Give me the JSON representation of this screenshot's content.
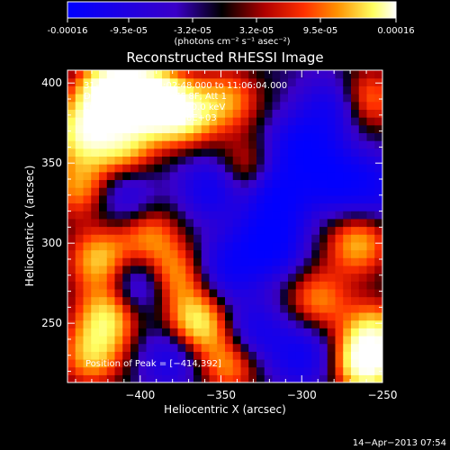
{
  "colorbar": {
    "ticks": [
      "-0.00016",
      "-9.5e-05",
      "-3.2e-05",
      "3.2e-05",
      "9.5e-05",
      "0.00016"
    ],
    "unit_label": "(photons cm⁻² s⁻¹ asec⁻²)",
    "colors": [
      "#0000ff",
      "#3a00c8",
      "#000000",
      "#b00000",
      "#ff3000",
      "#ff9000",
      "#ffff60",
      "#ffffff"
    ]
  },
  "chart_data": {
    "type": "heatmap",
    "title": "Reconstructed RHESSI Image",
    "xlabel": "Heliocentric X (arcsec)",
    "ylabel": "Heliocentric Y (arcsec)",
    "xlim": [
      -445,
      -250
    ],
    "ylim": [
      213,
      408
    ],
    "xticks": [
      -400,
      -350,
      -300,
      -250
    ],
    "yticks": [
      250,
      300,
      350,
      400
    ],
    "xtick_labels": [
      "−400",
      "−350",
      "−300",
      "−250"
    ],
    "ytick_labels": [
      "250",
      "300",
      "350",
      "400"
    ],
    "annotations": [
      "31−Oct−2002 11:02:48.000 to 11:06:04.000",
      "Detectors: 4F 5F 6F 7F 8F, Att 1",
      "Energy Range: 25.0 − 50.0 keV",
      "Clean    Total counts: 5.78E+03"
    ],
    "peak_label": "Position of Peak = [−414,392]",
    "peak": [
      -414,
      392
    ],
    "data_range": [
      -0.00016,
      0.00016
    ],
    "sources": [
      {
        "x": -420,
        "y": 395,
        "a": 1.0
      },
      {
        "x": -400,
        "y": 393,
        "a": 0.95
      },
      {
        "x": -435,
        "y": 370,
        "a": 0.8
      },
      {
        "x": -385,
        "y": 385,
        "a": 0.7
      },
      {
        "x": -410,
        "y": 360,
        "a": 0.6
      },
      {
        "x": -370,
        "y": 380,
        "a": 0.55
      },
      {
        "x": -437,
        "y": 335,
        "a": 0.55
      },
      {
        "x": -425,
        "y": 290,
        "a": 0.65
      },
      {
        "x": -395,
        "y": 305,
        "a": 0.5
      },
      {
        "x": -380,
        "y": 280,
        "a": 0.6
      },
      {
        "x": -365,
        "y": 250,
        "a": 0.8
      },
      {
        "x": -345,
        "y": 225,
        "a": 0.55
      },
      {
        "x": -420,
        "y": 255,
        "a": 0.7
      },
      {
        "x": -430,
        "y": 230,
        "a": 0.6
      },
      {
        "x": -345,
        "y": 390,
        "a": 0.5
      },
      {
        "x": -335,
        "y": 345,
        "a": 0.45
      },
      {
        "x": -260,
        "y": 390,
        "a": 0.55
      },
      {
        "x": -265,
        "y": 300,
        "a": 0.6
      },
      {
        "x": -290,
        "y": 265,
        "a": 0.5
      },
      {
        "x": -255,
        "y": 245,
        "a": 0.6
      },
      {
        "x": -260,
        "y": 225,
        "a": 1.0
      },
      {
        "x": -320,
        "y": 300,
        "a": -0.75
      },
      {
        "x": -315,
        "y": 330,
        "a": -0.7
      },
      {
        "x": -300,
        "y": 360,
        "a": -0.65
      },
      {
        "x": -280,
        "y": 340,
        "a": -0.6
      },
      {
        "x": -355,
        "y": 335,
        "a": -0.55
      },
      {
        "x": -410,
        "y": 330,
        "a": -0.4
      },
      {
        "x": -400,
        "y": 275,
        "a": -0.55
      },
      {
        "x": -345,
        "y": 285,
        "a": -0.5
      },
      {
        "x": -330,
        "y": 245,
        "a": -0.45
      },
      {
        "x": -300,
        "y": 230,
        "a": -0.5
      },
      {
        "x": -280,
        "y": 385,
        "a": -0.5
      },
      {
        "x": -255,
        "y": 335,
        "a": -0.45
      },
      {
        "x": -380,
        "y": 230,
        "a": -0.45
      }
    ]
  },
  "footer": {
    "timestamp": "14−Apr−2013 07:54"
  }
}
